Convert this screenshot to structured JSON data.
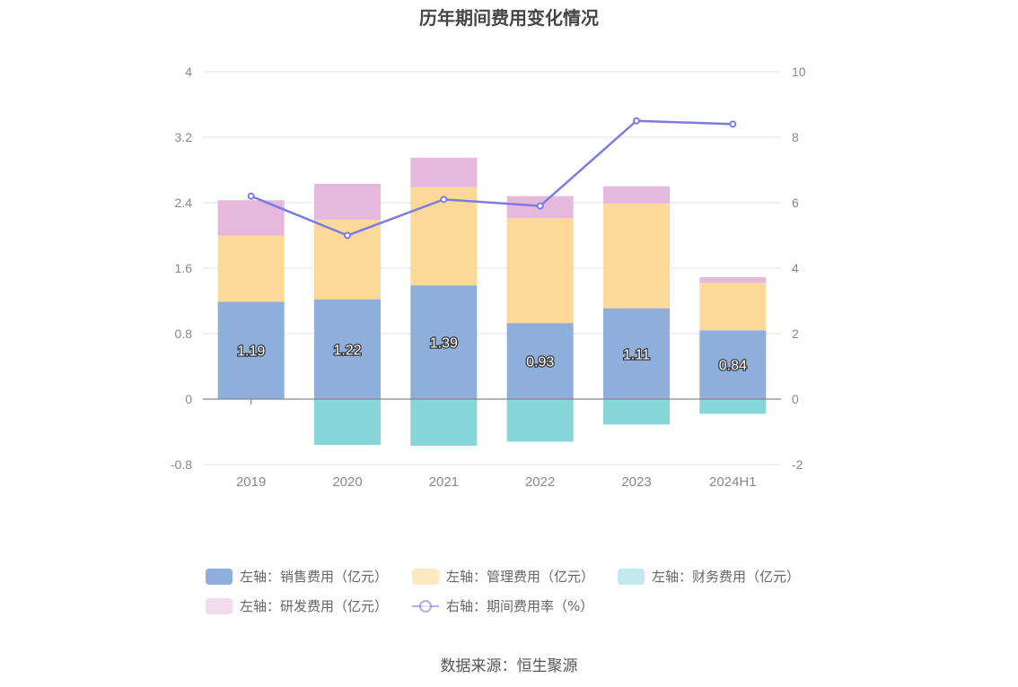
{
  "title": "历年期间费用变化情况",
  "source": "数据来源：恒生聚源",
  "colors": {
    "sales": "#8eaedb",
    "admin": "#fdd999",
    "finance": "#86d5d9",
    "rnd": "#e6b8dc",
    "rate": "#7b7be6",
    "grid": "#e0e3ef",
    "axis_text": "#888888",
    "zero_line": "#888888"
  },
  "legend": {
    "sales": "左轴：销售费用（亿元）",
    "admin": "左轴：管理费用（亿元）",
    "finance": "左轴：财务费用（亿元）",
    "rnd": "左轴：研发费用（亿元）",
    "rate": "右轴：期间费用率（%）"
  },
  "chart_data": {
    "type": "bar",
    "stacked": true,
    "categories": [
      "2019",
      "2020",
      "2021",
      "2022",
      "2023",
      "2024H1"
    ],
    "series": [
      {
        "name": "左轴：销售费用（亿元）",
        "key": "sales",
        "axis": "left",
        "values": [
          1.19,
          1.22,
          1.39,
          0.93,
          1.11,
          0.84
        ],
        "labels": [
          "1.19",
          "1.22",
          "1.39",
          "0.93",
          "1.11",
          "0.84"
        ]
      },
      {
        "name": "左轴：管理费用（亿元）",
        "key": "admin",
        "axis": "left",
        "values": [
          0.81,
          0.97,
          1.2,
          1.28,
          1.28,
          0.58
        ]
      },
      {
        "name": "左轴：财务费用（亿元）",
        "key": "finance",
        "axis": "left",
        "values": [
          0.0,
          -0.56,
          -0.57,
          -0.52,
          -0.31,
          -0.18
        ]
      },
      {
        "name": "左轴：研发费用（亿元）",
        "key": "rnd",
        "axis": "left",
        "values": [
          0.43,
          0.44,
          0.36,
          0.27,
          0.21,
          0.07
        ]
      },
      {
        "name": "右轴：期间费用率（%）",
        "key": "rate",
        "axis": "right",
        "type": "line",
        "values": [
          6.2,
          5.0,
          6.1,
          5.9,
          8.5,
          8.4
        ]
      }
    ],
    "left_axis": {
      "ylim": [
        -0.8,
        4
      ],
      "ticks": [
        "-0.8",
        "0",
        "0.8",
        "1.6",
        "2.4",
        "3.2",
        "4"
      ],
      "tick_values": [
        -0.8,
        0,
        0.8,
        1.6,
        2.4,
        3.2,
        4
      ]
    },
    "right_axis": {
      "ylim": [
        -2,
        10
      ],
      "ticks": [
        "-2",
        "0",
        "2",
        "4",
        "6",
        "8",
        "10"
      ],
      "tick_values": [
        -2,
        0,
        2,
        4,
        6,
        8,
        10
      ]
    },
    "grid": true,
    "legend_position": "bottom"
  }
}
